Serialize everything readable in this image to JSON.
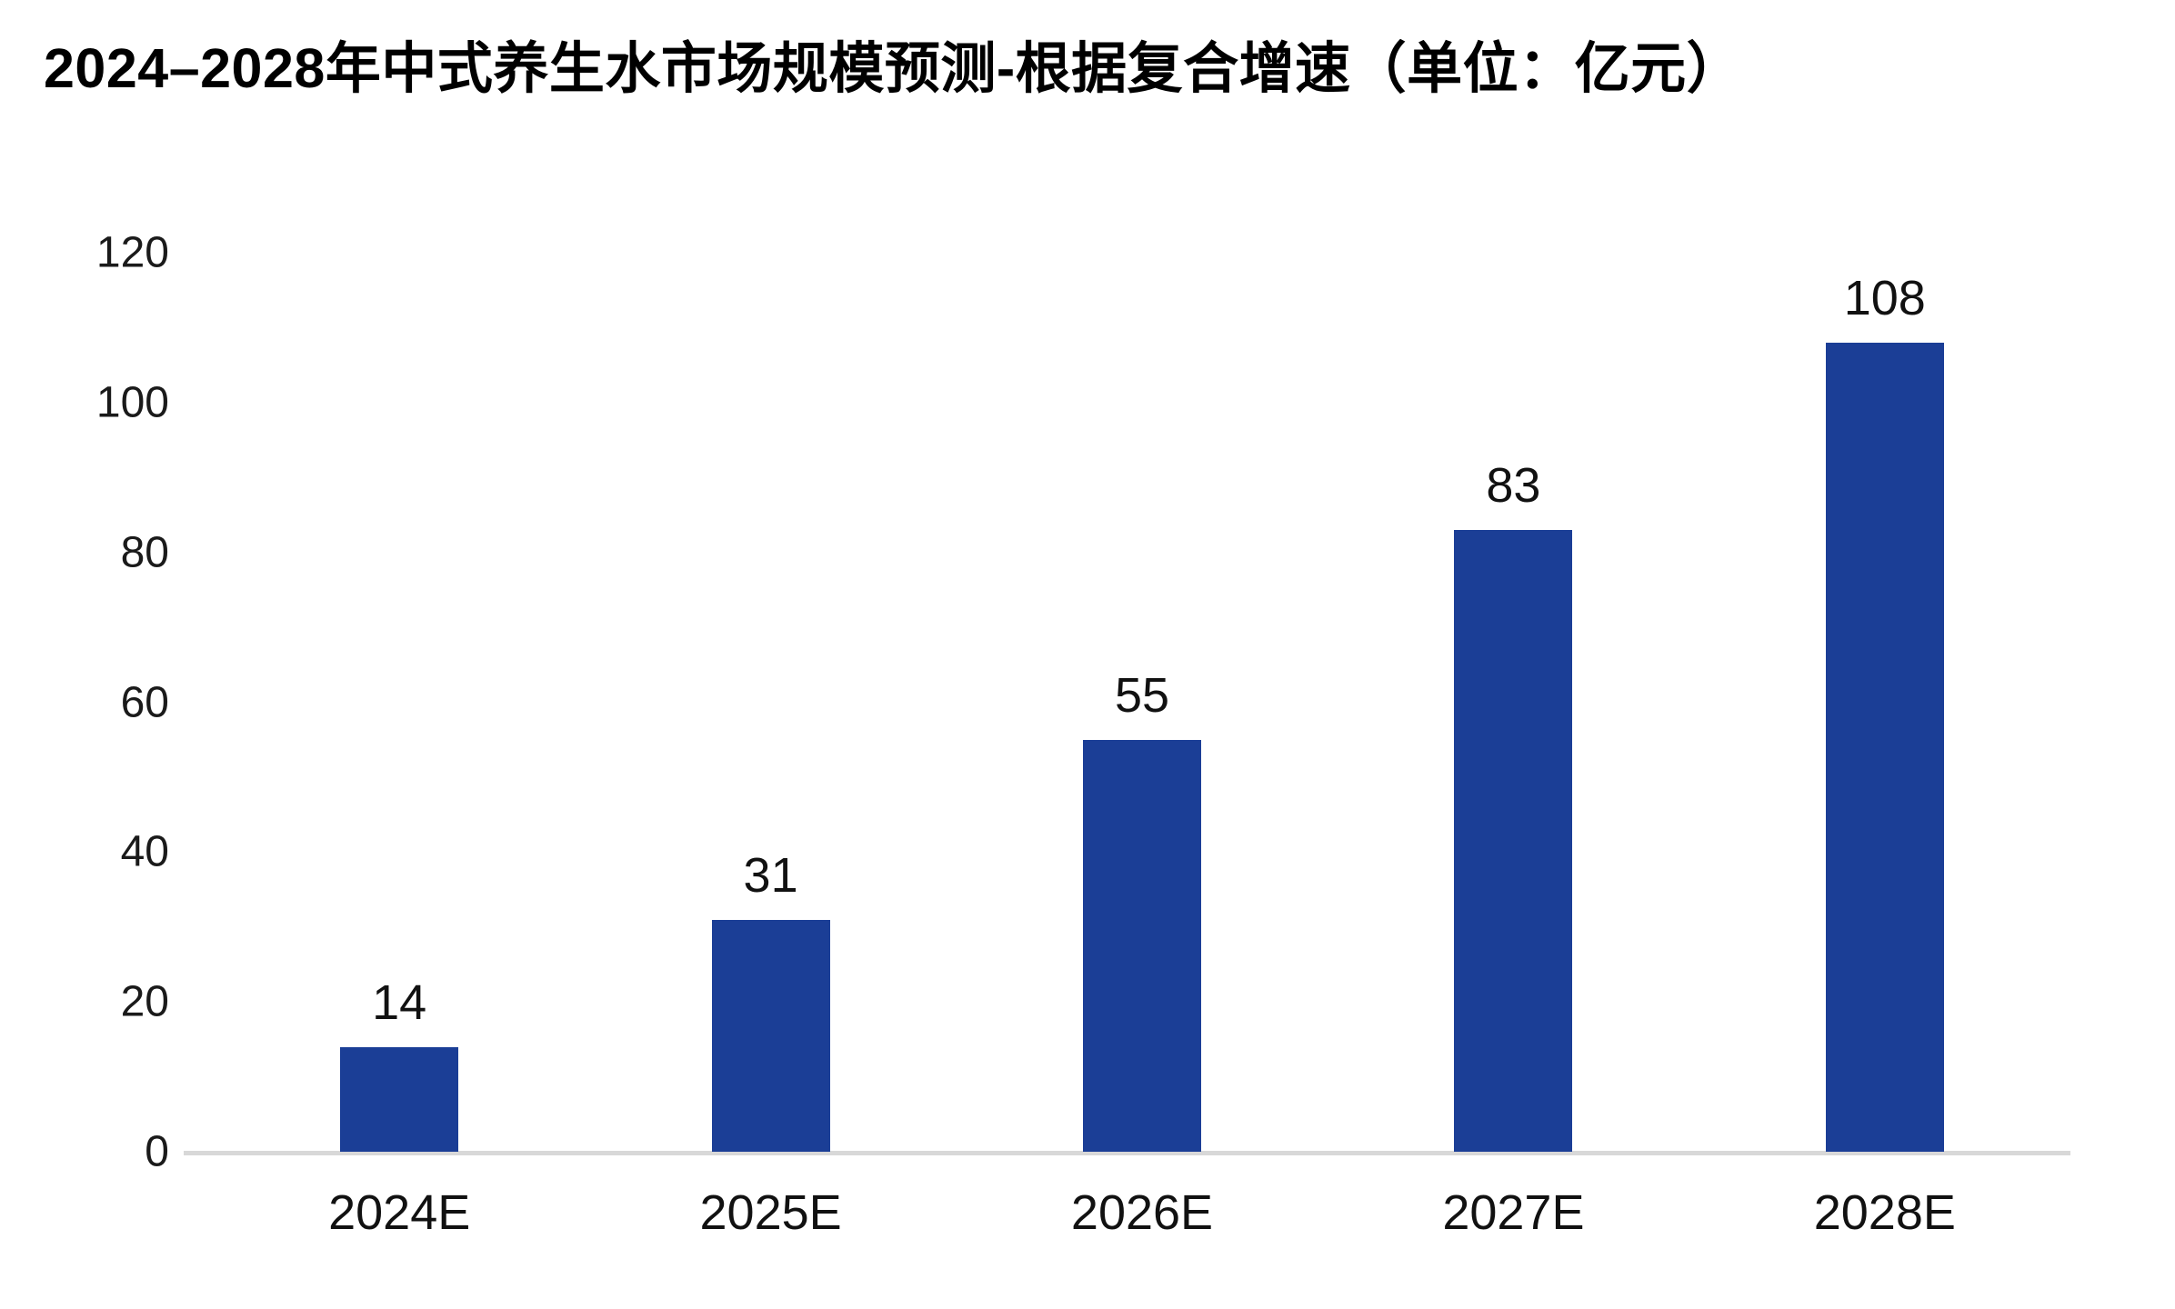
{
  "colors": {
    "bar": "#1B3E96",
    "axis_line": "#D8D8D8",
    "label_text": "#111111",
    "tick_text": "#1A1A1A",
    "title_text": "#000000",
    "background": "#FFFFFF"
  },
  "chart_data": {
    "type": "bar",
    "title": "2024–2028年中式养生水市场规模预测-根据复合增速（单位：亿元）",
    "categories": [
      "2024E",
      "2025E",
      "2026E",
      "2027E",
      "2028E"
    ],
    "values": [
      14,
      31,
      55,
      83,
      108
    ],
    "xlabel": "",
    "ylabel": "",
    "ylim": [
      0,
      120
    ],
    "yticks": [
      0,
      20,
      40,
      60,
      80,
      100,
      120
    ],
    "grid": false,
    "legend": false,
    "value_labels_shown": true,
    "bar_color": "#1B3E96"
  }
}
